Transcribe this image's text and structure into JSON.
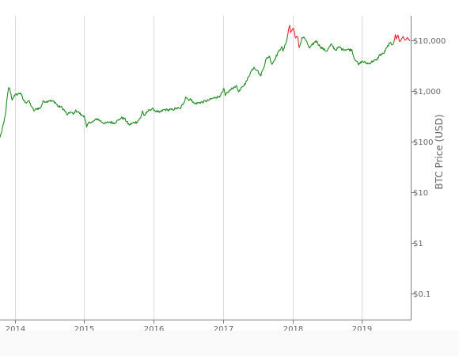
{
  "chart_data": {
    "type": "line",
    "title": "",
    "xlabel": "",
    "ylabel": "BTC Price (USD)",
    "y_scale": "log",
    "xlim": [
      "2013-10-15",
      "2019-09-15"
    ],
    "ylim": [
      0.03,
      30000
    ],
    "grid": {
      "vertical": true,
      "horizontal": false
    },
    "x_ticks": [
      {
        "date": "2014-01-01",
        "label": "2014"
      },
      {
        "date": "2015-01-01",
        "label": "2015"
      },
      {
        "date": "2016-01-01",
        "label": "2016"
      },
      {
        "date": "2017-01-01",
        "label": "2017"
      },
      {
        "date": "2018-01-01",
        "label": "2018"
      },
      {
        "date": "2019-01-01",
        "label": "2019"
      }
    ],
    "y_ticks": [
      {
        "value": 10000,
        "label": "$10,000"
      },
      {
        "value": 1000,
        "label": "$1,000"
      },
      {
        "value": 100,
        "label": "$100"
      },
      {
        "value": 10,
        "label": "$10"
      },
      {
        "value": 1,
        "label": "$1"
      },
      {
        "value": 0.1,
        "label": "$0.1"
      }
    ],
    "series": [
      {
        "color": "#228b22",
        "points": [
          [
            "2013-10-15",
            120
          ],
          [
            "2013-10-25",
            160
          ],
          [
            "2013-11-05",
            240
          ],
          [
            "2013-11-15",
            400
          ],
          [
            "2013-11-22",
            750
          ],
          [
            "2013-11-30",
            1150
          ],
          [
            "2013-12-06",
            1050
          ],
          [
            "2013-12-18",
            650
          ],
          [
            "2013-12-28",
            800
          ],
          [
            "2014-01-15",
            850
          ],
          [
            "2014-01-31",
            900
          ],
          [
            "2014-02-15",
            650
          ],
          [
            "2014-02-28",
            580
          ],
          [
            "2014-03-15",
            630
          ],
          [
            "2014-04-01",
            470
          ],
          [
            "2014-04-11",
            400
          ],
          [
            "2014-04-25",
            440
          ],
          [
            "2014-05-15",
            450
          ],
          [
            "2014-06-01",
            630
          ],
          [
            "2014-06-15",
            600
          ],
          [
            "2014-07-01",
            640
          ],
          [
            "2014-07-15",
            620
          ],
          [
            "2014-08-01",
            590
          ],
          [
            "2014-08-18",
            480
          ],
          [
            "2014-09-01",
            480
          ],
          [
            "2014-09-20",
            400
          ],
          [
            "2014-10-05",
            330
          ],
          [
            "2014-10-20",
            380
          ],
          [
            "2014-11-05",
            340
          ],
          [
            "2014-11-15",
            400
          ],
          [
            "2014-12-01",
            380
          ],
          [
            "2014-12-20",
            320
          ],
          [
            "2015-01-01",
            320
          ],
          [
            "2015-01-14",
            190
          ],
          [
            "2015-01-28",
            240
          ],
          [
            "2015-02-15",
            240
          ],
          [
            "2015-03-10",
            280
          ],
          [
            "2015-03-31",
            245
          ],
          [
            "2015-04-20",
            225
          ],
          [
            "2015-05-15",
            240
          ],
          [
            "2015-06-10",
            230
          ],
          [
            "2015-07-05",
            270
          ],
          [
            "2015-07-15",
            290
          ],
          [
            "2015-08-01",
            280
          ],
          [
            "2015-08-25",
            210
          ],
          [
            "2015-09-15",
            230
          ],
          [
            "2015-10-05",
            240
          ],
          [
            "2015-10-25",
            290
          ],
          [
            "2015-11-04",
            400
          ],
          [
            "2015-11-12",
            320
          ],
          [
            "2015-11-25",
            360
          ],
          [
            "2015-12-10",
            420
          ],
          [
            "2015-12-31",
            430
          ],
          [
            "2016-01-15",
            390
          ],
          [
            "2016-02-01",
            370
          ],
          [
            "2016-02-25",
            420
          ],
          [
            "2016-03-15",
            415
          ],
          [
            "2016-04-10",
            420
          ],
          [
            "2016-05-01",
            450
          ],
          [
            "2016-05-20",
            440
          ],
          [
            "2016-06-10",
            600
          ],
          [
            "2016-06-18",
            750
          ],
          [
            "2016-07-01",
            670
          ],
          [
            "2016-07-20",
            660
          ],
          [
            "2016-08-02",
            550
          ],
          [
            "2016-08-25",
            575
          ],
          [
            "2016-09-20",
            600
          ],
          [
            "2016-10-15",
            640
          ],
          [
            "2016-11-05",
            700
          ],
          [
            "2016-11-25",
            740
          ],
          [
            "2016-12-15",
            780
          ],
          [
            "2016-12-31",
            960
          ],
          [
            "2017-01-05",
            1100
          ],
          [
            "2017-01-12",
            800
          ],
          [
            "2017-02-01",
            980
          ],
          [
            "2017-02-25",
            1150
          ],
          [
            "2017-03-10",
            1250
          ],
          [
            "2017-03-25",
            950
          ],
          [
            "2017-04-15",
            1200
          ],
          [
            "2017-05-05",
            1550
          ],
          [
            "2017-05-25",
            2300
          ],
          [
            "2017-06-12",
            2900
          ],
          [
            "2017-07-01",
            2500
          ],
          [
            "2017-07-16",
            1950
          ],
          [
            "2017-08-01",
            2750
          ],
          [
            "2017-08-15",
            4200
          ],
          [
            "2017-09-01",
            4800
          ],
          [
            "2017-09-15",
            3300
          ],
          [
            "2017-10-01",
            4300
          ],
          [
            "2017-10-20",
            5900
          ],
          [
            "2017-11-05",
            7400
          ],
          [
            "2017-11-12",
            6000
          ],
          [
            "2017-11-25",
            8200
          ],
          [
            "2017-12-05",
            11500
          ]
        ]
      },
      {
        "color": "#e32636",
        "points": [
          [
            "2017-12-05",
            11500
          ],
          [
            "2017-12-10",
            15000
          ],
          [
            "2017-12-17",
            19500
          ],
          [
            "2017-12-22",
            14000
          ],
          [
            "2017-12-28",
            15500
          ],
          [
            "2018-01-06",
            17000
          ],
          [
            "2018-01-12",
            13500
          ],
          [
            "2018-01-17",
            11000
          ],
          [
            "2018-01-28",
            11500
          ],
          [
            "2018-02-05",
            7000
          ]
        ]
      },
      {
        "color": "#228b22",
        "points": [
          [
            "2018-02-05",
            7000
          ],
          [
            "2018-02-12",
            8500
          ],
          [
            "2018-02-20",
            11200
          ],
          [
            "2018-03-05",
            11000
          ],
          [
            "2018-03-20",
            8500
          ],
          [
            "2018-04-01",
            6900
          ],
          [
            "2018-04-15",
            8000
          ],
          [
            "2018-05-05",
            9700
          ],
          [
            "2018-05-25",
            7500
          ],
          [
            "2018-06-15",
            6500
          ],
          [
            "2018-06-29",
            6000
          ],
          [
            "2018-07-25",
            8200
          ],
          [
            "2018-08-15",
            6300
          ],
          [
            "2018-09-05",
            7300
          ],
          [
            "2018-09-20",
            6500
          ],
          [
            "2018-10-15",
            6500
          ],
          [
            "2018-11-10",
            6400
          ],
          [
            "2018-11-20",
            4500
          ],
          [
            "2018-12-05",
            3800
          ],
          [
            "2018-12-15",
            3200
          ],
          [
            "2018-12-31",
            3800
          ],
          [
            "2019-01-20",
            3550
          ],
          [
            "2019-02-07",
            3400
          ],
          [
            "2019-02-28",
            3850
          ],
          [
            "2019-03-20",
            4000
          ],
          [
            "2019-04-03",
            5000
          ],
          [
            "2019-04-25",
            5400
          ],
          [
            "2019-05-12",
            7000
          ],
          [
            "2019-05-28",
            8700
          ],
          [
            "2019-06-10",
            8000
          ],
          [
            "2019-06-20",
            9600
          ]
        ]
      },
      {
        "color": "#e32636",
        "points": [
          [
            "2019-06-20",
            9600
          ],
          [
            "2019-06-26",
            12800
          ],
          [
            "2019-07-02",
            10500
          ],
          [
            "2019-07-10",
            12500
          ],
          [
            "2019-07-17",
            9500
          ],
          [
            "2019-07-25",
            9800
          ],
          [
            "2019-08-06",
            11800
          ],
          [
            "2019-08-15",
            10000
          ],
          [
            "2019-08-25",
            10700
          ],
          [
            "2019-09-05",
            10500
          ],
          [
            "2019-09-12",
            9800
          ]
        ]
      }
    ]
  }
}
